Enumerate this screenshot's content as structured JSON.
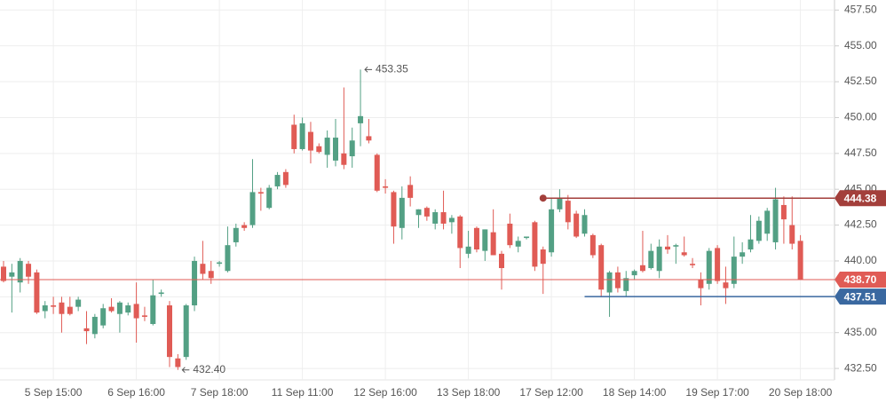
{
  "chart_data": {
    "type": "candlestick",
    "categories": [
      null,
      null,
      null,
      null,
      null,
      null,
      "5 Sep 15:00",
      null,
      null,
      null,
      null,
      null,
      null,
      null,
      null,
      null,
      "6 Sep 16:00",
      null,
      null,
      null,
      null,
      null,
      null,
      null,
      null,
      null,
      "7 Sep 18:00",
      null,
      null,
      null,
      null,
      null,
      null,
      null,
      null,
      null,
      "11 Sep 11:00",
      null,
      null,
      null,
      null,
      null,
      null,
      null,
      null,
      null,
      "12 Sep 16:00",
      null,
      null,
      null,
      null,
      null,
      null,
      null,
      null,
      null,
      "13 Sep 18:00",
      null,
      null,
      null,
      null,
      null,
      null,
      null,
      null,
      null,
      "17 Sep 12:00",
      null,
      null,
      null,
      null,
      null,
      null,
      null,
      null,
      null,
      "18 Sep 14:00",
      null,
      null,
      null,
      null,
      null,
      null,
      null,
      null,
      null,
      "19 Sep 17:00",
      null,
      null,
      null,
      null,
      null,
      null,
      null,
      null,
      null,
      "20 Sep 18:00"
    ],
    "open": [
      439.6,
      438.9,
      438.5,
      439.8,
      439.2,
      436.5,
      436.9,
      437.1,
      436.8,
      436.8,
      435.3,
      434.9,
      435.5,
      436.8,
      436.3,
      436.4,
      437,
      436.2,
      435.6,
      437.7,
      436.9,
      433.2,
      433.3,
      436.9,
      439.8,
      439.3,
      439.8,
      439.3,
      441.3,
      442.5,
      442.5,
      444.8,
      443.7,
      445.2,
      446.2,
      449.5,
      447.8,
      449,
      448,
      447.4,
      447,
      447.5,
      447.3,
      449.6,
      448.7,
      447.4,
      445.2,
      444.8,
      442.3,
      445.3,
      443.2,
      443.7,
      442.6,
      443.4,
      442.7,
      443.1,
      440.5,
      442.3,
      440.7,
      442,
      440.5,
      442.6,
      441,
      441.6,
      442.7,
      440.8,
      440.6,
      443.6,
      444.2,
      443.3,
      441.9,
      441.8,
      441.1,
      437.8,
      439.2,
      437.9,
      439,
      439.7,
      439.5,
      439.3,
      441,
      441,
      440.6,
      439.8,
      438.7,
      438.4,
      440.9,
      438.5,
      438.4,
      440.3,
      440.8,
      441.4,
      441.9,
      441.3,
      443.9,
      442.5,
      441.4
    ],
    "high": [
      440,
      439.8,
      440.2,
      440,
      439.4,
      437.2,
      437.5,
      437.5,
      437.5,
      437.5,
      436.5,
      436.3,
      437,
      437.4,
      437.2,
      437.1,
      438.5,
      436.8,
      438.7,
      438,
      437.2,
      433.5,
      437,
      440.3,
      441.4,
      440,
      440,
      442.4,
      442.6,
      442.7,
      447.1,
      445.1,
      445.3,
      446.2,
      446.4,
      450.2,
      450,
      449.7,
      448.2,
      449.1,
      449.9,
      452.1,
      449.3,
      453.35,
      449.9,
      447.5,
      445.7,
      444.9,
      445.2,
      445.9,
      443.6,
      443.8,
      443.6,
      444.9,
      443.2,
      443.2,
      442.1,
      442.4,
      442.2,
      443.6,
      440.7,
      443.3,
      441.7,
      441.7,
      442.8,
      441,
      444.4,
      445,
      444.6,
      443.5,
      443.6,
      441.9,
      441.2,
      439.3,
      439.6,
      439.3,
      439.4,
      442.1,
      441.2,
      441.5,
      441.8,
      441.2,
      441.7,
      440.2,
      439.2,
      440.9,
      441.1,
      439.6,
      441.7,
      441.3,
      443.2,
      443.1,
      443.7,
      445.1,
      444.5,
      444.5,
      441.8
    ],
    "low": [
      438.5,
      436.4,
      437.8,
      438.4,
      436.3,
      436,
      436.3,
      435,
      436.2,
      436.5,
      434.2,
      434.6,
      435.3,
      436.4,
      435,
      436.2,
      434.3,
      435.8,
      435.5,
      437.5,
      432.6,
      432.4,
      433.1,
      436.5,
      438.7,
      438.4,
      439.6,
      439.2,
      441,
      442.1,
      442.3,
      443.5,
      443.6,
      445,
      445.1,
      447.5,
      447.7,
      446.8,
      447.5,
      446.5,
      446.6,
      446.4,
      446.5,
      448,
      448.2,
      444.8,
      444.7,
      441.2,
      441.5,
      443.8,
      442.3,
      442.8,
      442.2,
      442.2,
      441.9,
      439.5,
      440.2,
      440.6,
      440,
      440.4,
      438,
      440.9,
      440.6,
      441.5,
      439.3,
      437.7,
      440.3,
      443.4,
      442.2,
      441.6,
      441.7,
      440.2,
      437.5,
      436.1,
      437.8,
      437.5,
      438.7,
      439.2,
      439.4,
      438.8,
      440.5,
      439.8,
      440.3,
      439.5,
      436.9,
      438,
      438.4,
      437,
      438.1,
      439.8,
      440.6,
      441.2,
      441.4,
      440.8,
      441.2,
      440.8,
      438.7
    ],
    "close": [
      438.6,
      439.2,
      440,
      438.9,
      436.4,
      436.9,
      436.8,
      436.3,
      436.3,
      437.3,
      435.1,
      436.1,
      436.7,
      436.5,
      437.1,
      436.9,
      436,
      436.1,
      437.6,
      437.8,
      433.3,
      432.6,
      436.9,
      440,
      439.1,
      438.8,
      439.9,
      441.1,
      442.3,
      442.3,
      444.8,
      444.7,
      445.1,
      446,
      445.3,
      447.8,
      449.6,
      447.7,
      447.6,
      448.6,
      448.6,
      446.7,
      448.4,
      450.1,
      448.4,
      444.9,
      445.1,
      442.4,
      444.4,
      444.4,
      443.6,
      443.1,
      443.4,
      442.6,
      443,
      440.9,
      441,
      440.8,
      442.2,
      440.4,
      439.5,
      441.1,
      441.4,
      441.7,
      439.6,
      439.8,
      443.6,
      444.4,
      442.7,
      441.7,
      443.2,
      440.4,
      438,
      439.2,
      438.1,
      438.8,
      439.3,
      439.3,
      440.7,
      441,
      440.8,
      441.1,
      440.4,
      439.7,
      438.1,
      440.7,
      438.6,
      438.1,
      440.3,
      440.6,
      441.5,
      442.8,
      443.5,
      444.3,
      442.9,
      441.2,
      438.7
    ],
    "up_color": "#53a084",
    "down_color": "#e05b55",
    "ylim": [
      431.7,
      458.2
    ],
    "yticks": [
      {
        "value": 432.5,
        "label": "432.50"
      },
      {
        "value": 435,
        "label": "435.00"
      },
      {
        "value": 437.5,
        "label": "437.50"
      },
      {
        "value": 440,
        "label": "440.00"
      },
      {
        "value": 442.5,
        "label": "442.50"
      },
      {
        "value": 445,
        "label": "445.00"
      },
      {
        "value": 447.5,
        "label": "447.50"
      },
      {
        "value": 450,
        "label": "450.00"
      },
      {
        "value": 452.5,
        "label": "452.50"
      },
      {
        "value": 455,
        "label": "455.00"
      },
      {
        "value": 457.5,
        "label": "457.50"
      }
    ],
    "grid": true,
    "levels": [
      {
        "value": 444.38,
        "label": "444.38",
        "color": "#a33f3b"
      },
      {
        "value": 438.7,
        "label": "438.70",
        "color": "#e05b55"
      },
      {
        "value": 437.51,
        "label": "437.51",
        "color": "#3a68a0"
      }
    ],
    "annotations": [
      {
        "value": 453.35,
        "label": "453.35"
      },
      {
        "value": 432.4,
        "label": "432.40"
      }
    ]
  }
}
